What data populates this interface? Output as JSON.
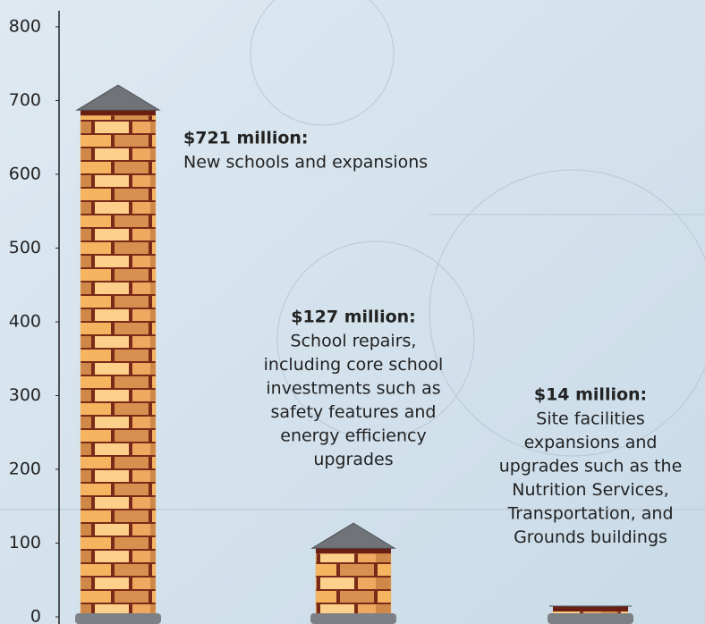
{
  "chart_data": {
    "type": "bar",
    "values": [
      721,
      127,
      14
    ],
    "value_labels": [
      "$721 million:",
      "$127 million:",
      "$14 million:"
    ],
    "descriptions": [
      [
        "New schools and expansions"
      ],
      [
        "School repairs,",
        "including core school",
        "investments such as",
        "safety features and",
        "energy efficiency",
        "upgrades"
      ],
      [
        "Site facilities",
        "expansions and",
        "upgrades such as the",
        "Nutrition Services,",
        "Transportation, and",
        "Grounds buildings"
      ]
    ],
    "color": "#f2b46a",
    "ylim": [
      0,
      800
    ],
    "yticks": [
      0,
      100,
      200,
      300,
      400,
      500,
      600,
      700,
      800
    ],
    "grid": false
  }
}
